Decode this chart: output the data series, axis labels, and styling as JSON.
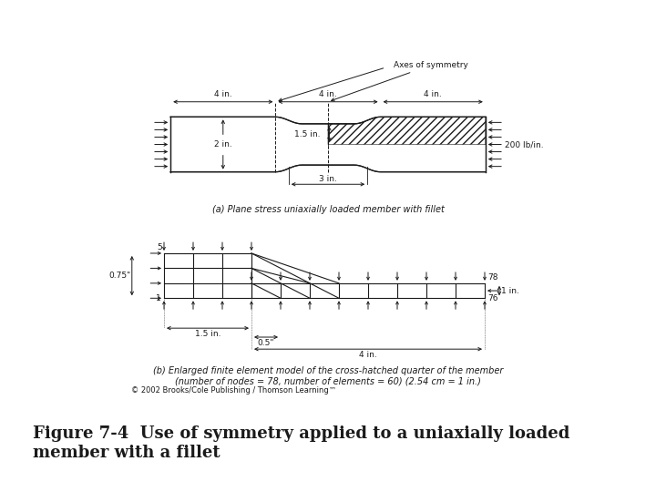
{
  "bg_color": "#ffffff",
  "fig_title": "Figure 7-4  Use of symmetry applied to a uniaxially loaded\nmember with a fillet",
  "copyright_text": "© 2002 Brooks/Cole Publishing / Thomson Learning™",
  "caption_a": "(a) Plane stress uniaxially loaded member with fillet",
  "caption_b": "(b) Enlarged finite element model of the cross-hatched quarter of the member\n(number of nodes = 78, number of elements = 60) (2.54 cm = 1 in.)",
  "line_color": "#1a1a1a",
  "annotation_fontsize": 6.5,
  "caption_fontsize": 7.0,
  "title_fontsize": 13,
  "title_bold": true
}
